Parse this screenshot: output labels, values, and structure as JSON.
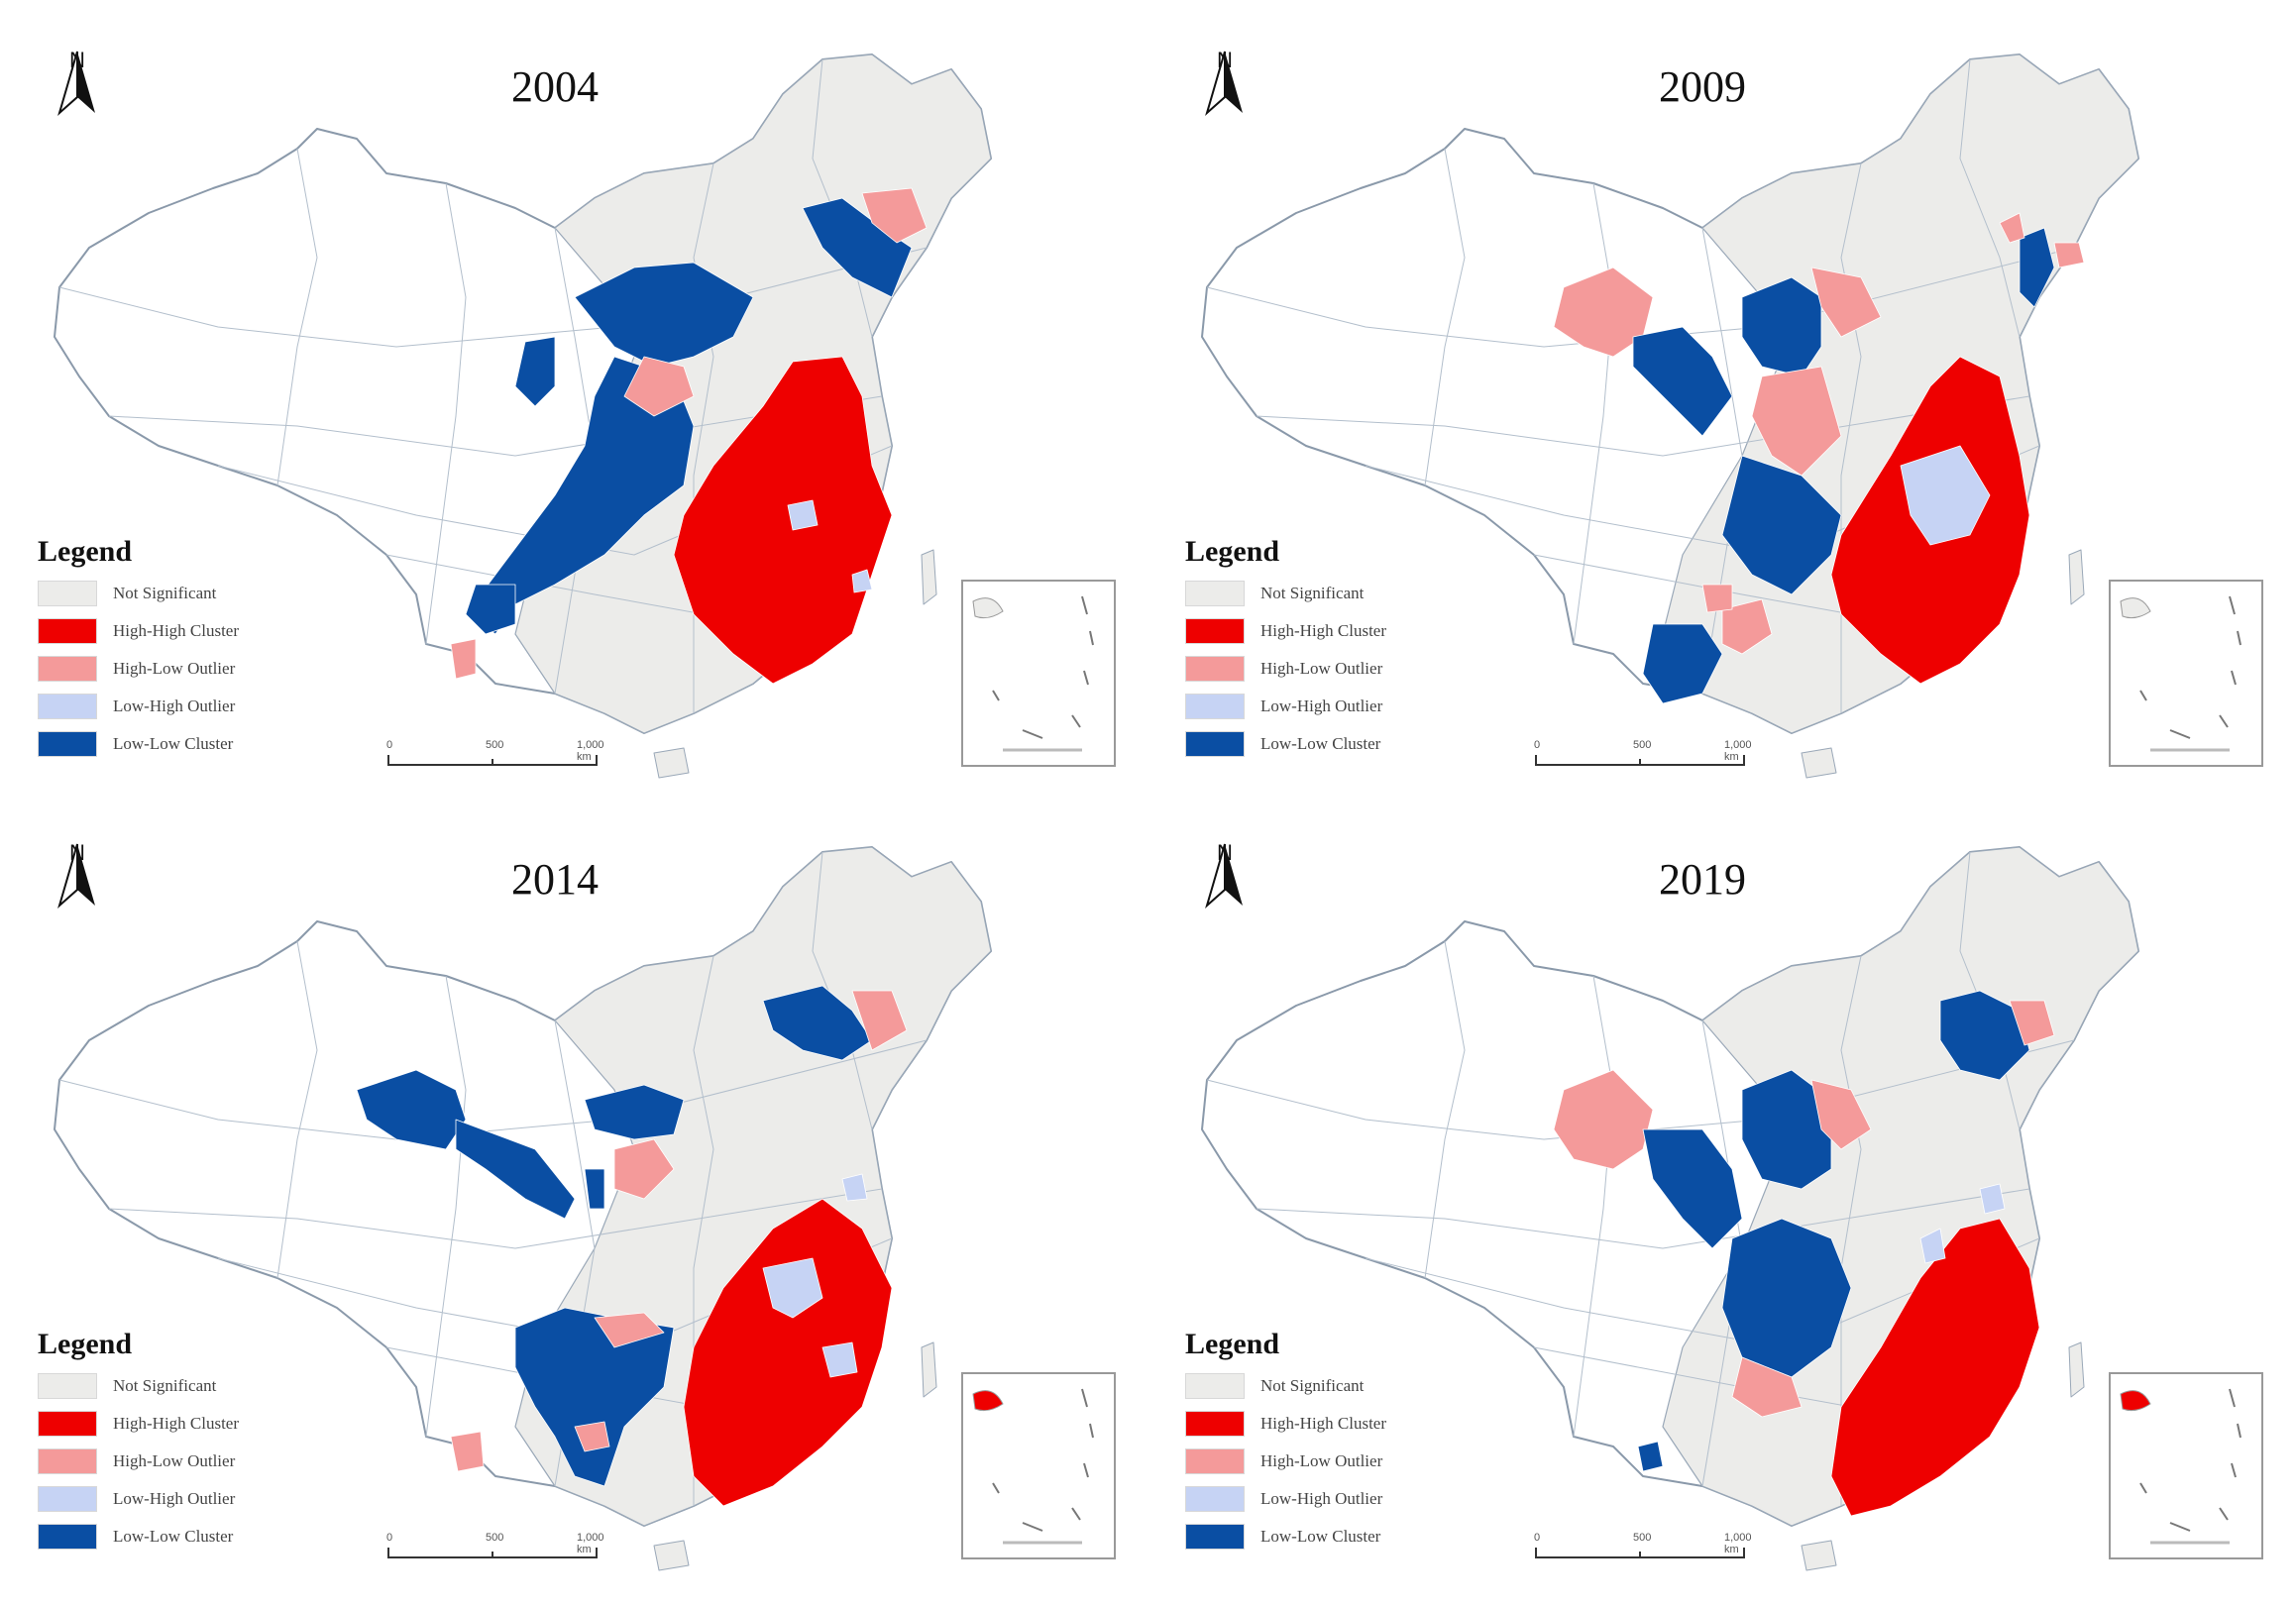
{
  "legend": {
    "title": "Legend",
    "items": [
      {
        "key": "ns",
        "label": "Not Significant",
        "color": "#ececea"
      },
      {
        "key": "hh",
        "label": "High-High Cluster",
        "color": "#ee0000"
      },
      {
        "key": "hl",
        "label": "High-Low Outlier",
        "color": "#f49a9a"
      },
      {
        "key": "lh",
        "label": "Low-High Outlier",
        "color": "#c6d3f4"
      },
      {
        "key": "ll",
        "label": "Low-Low Cluster",
        "color": "#0a4ea3"
      }
    ]
  },
  "north_label": "N",
  "panels": [
    {
      "year": "2004",
      "scale": [
        "0",
        "500",
        "1,000 km"
      ]
    },
    {
      "year": "2009",
      "scale": [
        "0",
        "500",
        "1,000 km"
      ]
    },
    {
      "year": "2014",
      "scale": [
        "0",
        "500",
        "1,000 km"
      ]
    },
    {
      "year": "2019",
      "scale": [
        "0",
        "500",
        "1,000 km"
      ]
    }
  ]
}
